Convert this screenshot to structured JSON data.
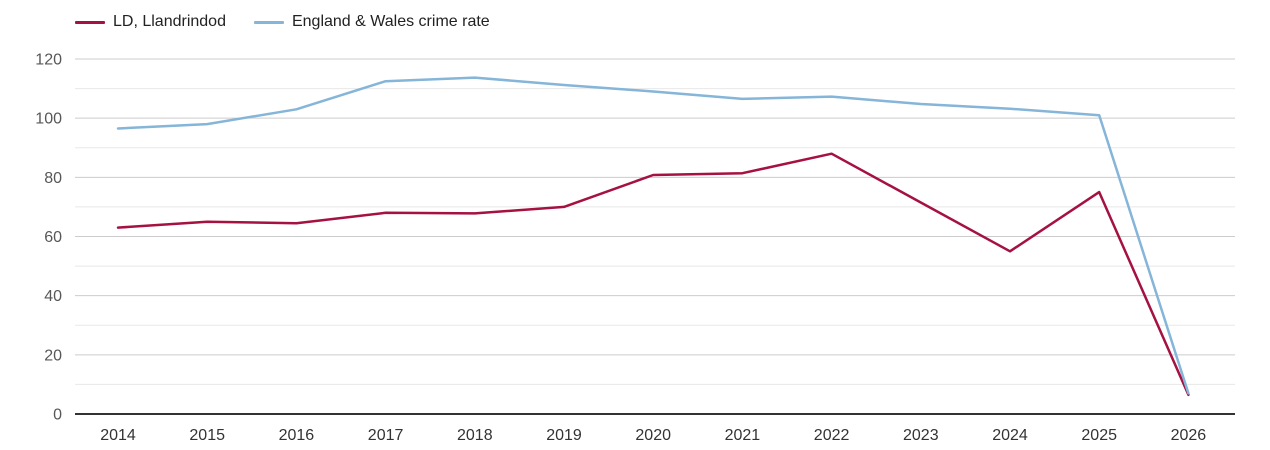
{
  "legend": {
    "items": [
      {
        "label": "LD, Llandrindod",
        "color": "#a51140"
      },
      {
        "label": "England & Wales crime rate",
        "color": "#85b5d8"
      }
    ]
  },
  "colors": {
    "background": "#ffffff",
    "grid_major": "#cccccc",
    "grid_minor": "#e8e8e8",
    "axis_line": "#333333",
    "y_tick_label": "#575757",
    "x_tick_label": "#333333"
  },
  "chart_data": {
    "type": "line",
    "title": "",
    "x": [
      "2014",
      "2015",
      "2016",
      "2017",
      "2018",
      "2019",
      "2020",
      "2021",
      "2022",
      "2023",
      "2024",
      "2025",
      "2026"
    ],
    "series": [
      {
        "name": "LD, Llandrindod",
        "color": "#a51140",
        "values": [
          63,
          65,
          64.5,
          68,
          67.8,
          70,
          80.8,
          81.4,
          88,
          71.5,
          55,
          75,
          6.5
        ]
      },
      {
        "name": "England & Wales crime rate",
        "color": "#85b5d8",
        "values": [
          96.5,
          98,
          103,
          112.5,
          113.7,
          111.2,
          109,
          106.5,
          107.3,
          104.8,
          103.2,
          101,
          7
        ]
      }
    ],
    "y_axis": {
      "min": 0,
      "max": 120,
      "tick_values": [
        0,
        20,
        40,
        60,
        80,
        100,
        120
      ],
      "tick_labels": [
        "0",
        "20",
        "40",
        "60",
        "80",
        "100",
        "120"
      ],
      "minor_tick_values": [
        10,
        30,
        50,
        70,
        90,
        110
      ]
    },
    "grid": true,
    "legend_position": "top-left"
  }
}
